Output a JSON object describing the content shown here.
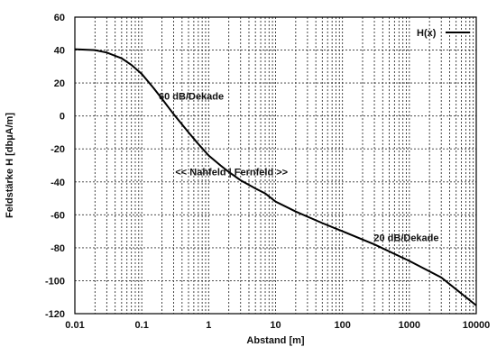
{
  "chart_data": {
    "type": "line",
    "xscale": "log",
    "xlim": [
      0.01,
      10000
    ],
    "ylim": [
      -120,
      60
    ],
    "xticks": [
      "0.01",
      "0.1",
      "1",
      "10",
      "100",
      "1000",
      "10000"
    ],
    "yticks": [
      "60",
      "40",
      "20",
      "0",
      "-20",
      "-40",
      "-60",
      "-80",
      "-100",
      "-120"
    ],
    "xlabel": "Abstand [m]",
    "ylabel": "Feldstärke H [dbµA/m]",
    "grid": true,
    "legend_position": "top-right",
    "series": [
      {
        "name": "H(x)",
        "color": "#000000",
        "x": [
          0.01,
          0.02,
          0.03,
          0.05,
          0.07,
          0.1,
          0.15,
          0.2,
          0.3,
          0.5,
          0.7,
          1,
          1.5,
          2,
          3,
          5,
          7,
          10,
          20,
          50,
          100,
          300,
          1000,
          3000,
          10000
        ],
        "y": [
          40.5,
          40,
          38.5,
          35,
          31,
          25.5,
          17,
          10.5,
          1,
          -10,
          -17,
          -24,
          -30,
          -34,
          -39,
          -44,
          -47,
          -52,
          -58,
          -65,
          -70,
          -78,
          -88,
          -98,
          -115
        ]
      }
    ],
    "annotations": [
      {
        "text": "60 dB/Dekade",
        "x": 0.55,
        "y": 10
      },
      {
        "text": "<< Nahfeld | Fernfeld >>",
        "x": 2.2,
        "y": -36
      },
      {
        "text": "20 dB/Dekade",
        "x": 900,
        "y": -76
      }
    ]
  }
}
